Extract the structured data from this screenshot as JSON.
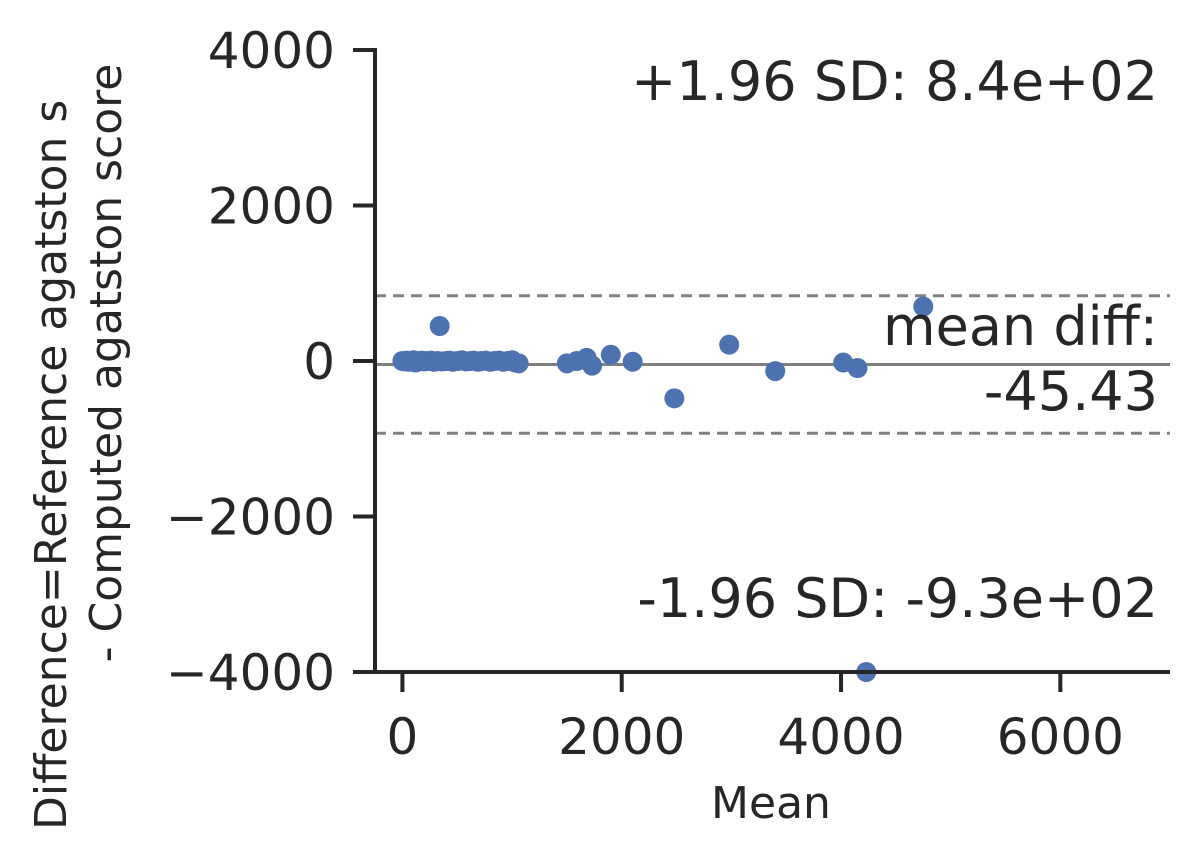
{
  "chart_data": {
    "type": "scatter",
    "title": "",
    "xlabel": "Mean",
    "ylabel_lines": [
      "Difference=Reference agatston s",
      "- Computed agatston score"
    ],
    "xlim": [
      -250,
      7000
    ],
    "ylim": [
      -4000,
      4000
    ],
    "x_ticks": [
      0,
      2000,
      4000,
      6000
    ],
    "x_tick_labels": [
      "0",
      "2000",
      "4000",
      "6000"
    ],
    "y_ticks": [
      4000,
      2000,
      0,
      -2000,
      -4000
    ],
    "y_tick_labels": [
      "4000",
      "2000",
      "0",
      "−2000",
      "−4000"
    ],
    "grid": false,
    "marker_color": "#4c72b0",
    "line_color": "#808080",
    "mean_diff": -45.43,
    "upper_loa": 840,
    "lower_loa": -930,
    "annotations": {
      "upper": "+1.96 SD: 8.4e+02",
      "mean_line1": "mean diff:",
      "mean_line2": "-45.43",
      "lower": "-1.96 SD: -9.3e+02"
    },
    "points": [
      [
        0,
        0
      ],
      [
        20,
        -5
      ],
      [
        40,
        5
      ],
      [
        60,
        -10
      ],
      [
        80,
        0
      ],
      [
        100,
        10
      ],
      [
        120,
        -20
      ],
      [
        150,
        0
      ],
      [
        180,
        5
      ],
      [
        200,
        -5
      ],
      [
        230,
        0
      ],
      [
        260,
        5
      ],
      [
        290,
        -10
      ],
      [
        320,
        0
      ],
      [
        340,
        450
      ],
      [
        360,
        -5
      ],
      [
        400,
        0
      ],
      [
        430,
        5
      ],
      [
        460,
        -10
      ],
      [
        500,
        0
      ],
      [
        540,
        10
      ],
      [
        580,
        -5
      ],
      [
        620,
        0
      ],
      [
        650,
        5
      ],
      [
        690,
        -10
      ],
      [
        720,
        0
      ],
      [
        760,
        5
      ],
      [
        800,
        -10
      ],
      [
        840,
        0
      ],
      [
        880,
        5
      ],
      [
        920,
        -10
      ],
      [
        960,
        0
      ],
      [
        1000,
        10
      ],
      [
        1030,
        -20
      ],
      [
        1060,
        -30
      ],
      [
        1500,
        -30
      ],
      [
        1590,
        0
      ],
      [
        1680,
        40
      ],
      [
        1730,
        -60
      ],
      [
        1900,
        80
      ],
      [
        2100,
        -10
      ],
      [
        2480,
        -480
      ],
      [
        2980,
        210
      ],
      [
        3400,
        -130
      ],
      [
        4020,
        -20
      ],
      [
        4150,
        -90
      ],
      [
        4750,
        700
      ],
      [
        4230,
        -4000
      ]
    ]
  }
}
